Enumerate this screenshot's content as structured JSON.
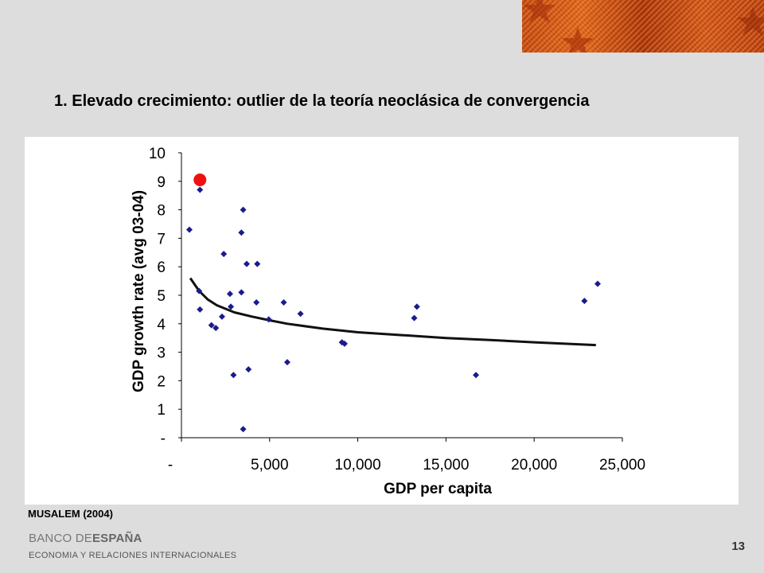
{
  "header": {
    "title": "1. Elevado crecimiento: outlier de la teoría neoclásica de convergencia"
  },
  "source": "MUSALEM (2004)",
  "footer": {
    "logo_part1": "BANCO DE",
    "logo_part2": "ESPAÑA",
    "department": "ECONOMIA Y RELACIONES INTERNACIONALES",
    "page_number": "13"
  },
  "colors": {
    "marker": "#1b1b8c",
    "highlight": "#ee1111",
    "trend": "#111111",
    "banner": "#c24a12"
  },
  "chart_data": {
    "type": "scatter",
    "title": "",
    "xlabel": "GDP per capita",
    "ylabel": "GDP growth rate (avg 03-04)",
    "xlim": [
      0,
      25000
    ],
    "ylim": [
      0,
      10
    ],
    "x_ticks": [
      0,
      5000,
      10000,
      15000,
      20000,
      25000
    ],
    "x_tick_labels": [
      "-",
      "5,000",
      "10,000",
      "15,000",
      "20,000",
      "25,000"
    ],
    "y_ticks": [
      0,
      1,
      2,
      3,
      4,
      5,
      6,
      7,
      8,
      9,
      10
    ],
    "y_tick_labels": [
      "-",
      "1",
      "2",
      "3",
      "4",
      "5",
      "6",
      "7",
      "8",
      "9",
      "10"
    ],
    "grid": false,
    "series": [
      {
        "marker": "diamond",
        "points": [
          [
            450,
            7.3
          ],
          [
            1000,
            5.15
          ],
          [
            1050,
            8.7
          ],
          [
            1050,
            4.5
          ],
          [
            1700,
            3.95
          ],
          [
            1950,
            3.85
          ],
          [
            2300,
            4.25
          ],
          [
            2400,
            6.45
          ],
          [
            2750,
            5.05
          ],
          [
            2800,
            4.6
          ],
          [
            2950,
            2.2
          ],
          [
            3400,
            7.2
          ],
          [
            3400,
            5.1
          ],
          [
            3500,
            8.0
          ],
          [
            3500,
            0.3
          ],
          [
            3700,
            6.1
          ],
          [
            3800,
            2.4
          ],
          [
            4250,
            4.75
          ],
          [
            4300,
            6.1
          ],
          [
            4950,
            4.15
          ],
          [
            5800,
            4.75
          ],
          [
            6000,
            2.65
          ],
          [
            6750,
            4.35
          ],
          [
            9100,
            3.35
          ],
          [
            9250,
            3.3
          ],
          [
            13200,
            4.2
          ],
          [
            13350,
            4.6
          ],
          [
            16700,
            2.2
          ],
          [
            22850,
            4.8
          ],
          [
            23600,
            5.4
          ]
        ]
      }
    ],
    "highlight_point": [
      1050,
      9.05
    ],
    "trendline": {
      "type": "logarithmic",
      "points": [
        [
          500,
          5.6
        ],
        [
          1000,
          5.15
        ],
        [
          1500,
          4.85
        ],
        [
          2000,
          4.65
        ],
        [
          3000,
          4.4
        ],
        [
          4000,
          4.25
        ],
        [
          5000,
          4.12
        ],
        [
          6000,
          4.0
        ],
        [
          8000,
          3.83
        ],
        [
          10000,
          3.7
        ],
        [
          12500,
          3.6
        ],
        [
          15000,
          3.5
        ],
        [
          17500,
          3.43
        ],
        [
          20000,
          3.35
        ],
        [
          23500,
          3.25
        ]
      ]
    }
  }
}
